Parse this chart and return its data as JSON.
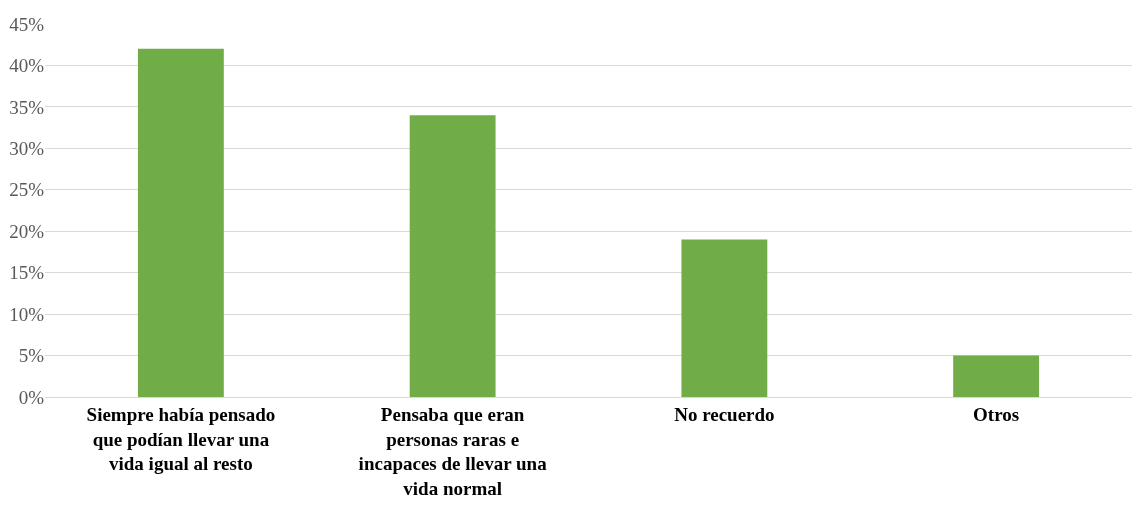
{
  "chart_data": {
    "type": "bar",
    "categories": [
      "Siempre había pensado que podían llevar una vida igual al resto",
      "Pensaba que eran personas raras e incapaces de llevar una vida normal",
      "No recuerdo",
      "Otros"
    ],
    "values": [
      42,
      34,
      19,
      5
    ],
    "color": "#70ad47",
    "ylim": [
      0,
      45
    ],
    "yticks": [
      {
        "value": 0,
        "label": "0%"
      },
      {
        "value": 5,
        "label": "5%"
      },
      {
        "value": 10,
        "label": "10%"
      },
      {
        "value": 15,
        "label": "15%"
      },
      {
        "value": 20,
        "label": "20%"
      },
      {
        "value": 25,
        "label": "25%"
      },
      {
        "value": 30,
        "label": "30%"
      },
      {
        "value": 35,
        "label": "35%"
      },
      {
        "value": 40,
        "label": "40%"
      },
      {
        "value": 45,
        "label": "45%"
      }
    ],
    "grid": "y"
  }
}
